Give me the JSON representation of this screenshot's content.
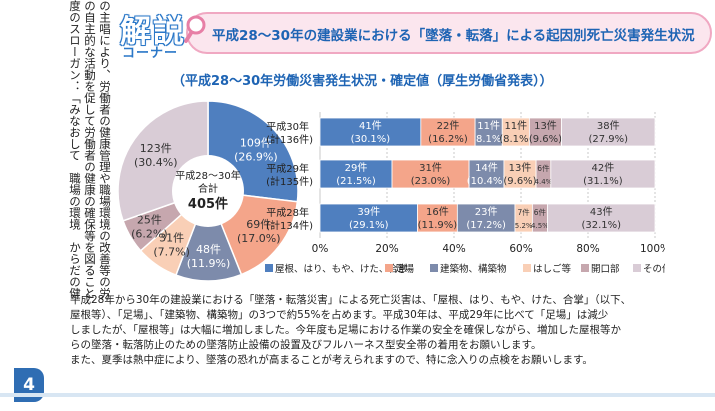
{
  "left_column_text": [
    "の主唱により、労働者の健康管理や職場環境の改善等の労働衛生に関する",
    "の自主的な活動を促して労働者の健康の確保等を図ることを目的として、",
    "度のスローガン：「みなおして　職場の環境　からだの健康」"
  ],
  "page_number": "4",
  "header": {
    "badge_main": "解説",
    "badge_sub": "コーナー",
    "title": "平成28～30年の建設業における「墜落・転落」による起因別死亡災害発生状況"
  },
  "subtitle": "（平成28～30年労働災害発生状況・確定値（厚生労働省発表））",
  "colors": [
    "#4f7fbf",
    "#f4a58a",
    "#7d8bab",
    "#f9cfb6",
    "#c6a7ae",
    "#d9ccd6"
  ],
  "chart_data": [
    {
      "type": "pie",
      "center_label": [
        "平成28～30年",
        "合計"
      ],
      "center_value": "405件",
      "categories": [
        "屋根、はり、もや、けた、合掌",
        "足場",
        "建築物、構築物",
        "はしご等",
        "開口部",
        "その他"
      ],
      "values": [
        109,
        69,
        48,
        31,
        25,
        123
      ],
      "labels": [
        {
          "count": "109件",
          "pct": "(26.9%)"
        },
        {
          "count": "69件",
          "pct": "(17.0%)"
        },
        {
          "count": "48件",
          "pct": "(11.9%)"
        },
        {
          "count": "31件",
          "pct": "(7.7%)"
        },
        {
          "count": "25件",
          "pct": "(6.2%)"
        },
        {
          "count": "123件",
          "pct": "(30.4%)"
        }
      ]
    },
    {
      "type": "bar",
      "orientation": "horizontal-stacked-100",
      "x_ticks": [
        "0%",
        "20%",
        "40%",
        "60%",
        "80%",
        "100%"
      ],
      "xlim": [
        0,
        100
      ],
      "grid": true,
      "legend_position": "bottom",
      "legend": [
        "屋根、はり、もや、けた、合掌",
        "足場",
        "建築物、構築物",
        "はしご等",
        "開口部",
        "その他"
      ],
      "rows": [
        {
          "label1": "平成30年",
          "label2": "(計136件)",
          "pct": [
            30.1,
            16.2,
            8.1,
            8.1,
            9.6,
            27.9
          ],
          "counts": [
            "41件",
            "22件",
            "11件",
            "11件",
            "13件",
            "38件"
          ],
          "pct_labels": [
            "(30.1%)",
            "(16.2%)",
            "8.1%",
            "(8.1%)",
            "(9.6%)",
            "(27.9%)"
          ]
        },
        {
          "label1": "平成29年",
          "label2": "(計135件)",
          "pct": [
            21.5,
            23.0,
            10.4,
            9.6,
            4.4,
            31.1
          ],
          "counts": [
            "29件",
            "31件",
            "14件",
            "13件",
            "6件",
            "42件"
          ],
          "pct_labels": [
            "(21.5%)",
            "(23.0%)",
            "(10.4%)",
            "(9.6%)",
            "4.4%",
            "(31.1%)"
          ]
        },
        {
          "label1": "平成28年",
          "label2": "(計134件)",
          "pct": [
            29.1,
            11.9,
            17.2,
            5.2,
            4.5,
            32.1
          ],
          "counts": [
            "39件",
            "16件",
            "23件",
            "7件",
            "6件",
            "43件"
          ],
          "pct_labels": [
            "(29.1%)",
            "(11.9%)",
            "(17.2%)",
            "5.2%",
            "4.5%",
            "(32.1%)"
          ]
        }
      ]
    }
  ],
  "paragraph": [
    "平成28年から30年の建設業における「墜落・転落災害」による死亡災害は、「屋根、はり、もや、けた、合掌」（以下、",
    "屋根等）、「足場」、「建築物、構築物」の3つで約55%を占めます。平成30年は、平成29年に比べて「足場」は減少",
    "しましたが、「屋根等」は大幅に増加しました。今年度も足場における作業の安全を確保しながら、増加した屋根等か",
    "らの墜落・転落防止のための墜落防止設備の設置及びフルハーネス型安全帯の着用をお願いします。",
    "また、夏季は熱中症により、墜落の恐れが高まることが考えられますので、特に念入りの点検をお願いします。"
  ]
}
